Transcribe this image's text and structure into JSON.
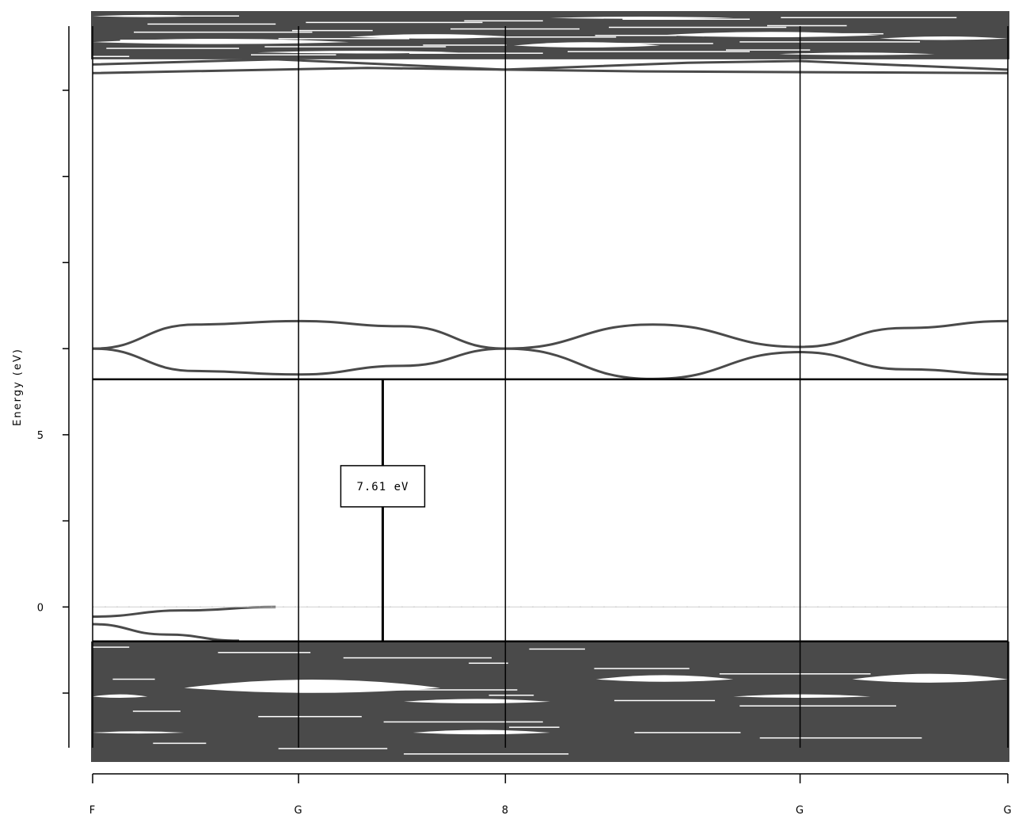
{
  "chart_data": {
    "type": "line",
    "title": "",
    "xlabel": "",
    "ylabel": "Energy (eV)",
    "y_ticks": [
      0,
      5
    ],
    "ylim": [
      -4.5,
      17.3
    ],
    "k_points": [
      {
        "label": "F",
        "x": 0.0
      },
      {
        "label": "G",
        "x": 0.225
      },
      {
        "label": "8",
        "x": 0.451
      },
      {
        "label": "G",
        "x": 0.773
      },
      {
        "label": "G",
        "x": 1.0
      }
    ],
    "band_gap": {
      "label": "7.61 eV",
      "value": 7.61,
      "vbm": -1.0,
      "cbm": 6.61,
      "k": 0.317
    },
    "fermi_level": 0,
    "valence_band_region": {
      "top": -1.0,
      "bottom": -4.5
    },
    "conduction_band_region": {
      "bottom": 6.61,
      "top": 17.3
    },
    "highlighted_bands": [
      {
        "name": "",
        "x": [
          0.0,
          0.113,
          0.225,
          0.338,
          0.451,
          0.612,
          0.773,
          0.887,
          1.0
        ],
        "y": [
          7.5,
          6.85,
          6.75,
          7.0,
          7.5,
          6.62,
          7.4,
          6.9,
          6.75
        ]
      },
      {
        "name": "",
        "x": [
          0.0,
          0.113,
          0.225,
          0.338,
          0.451,
          0.612,
          0.773,
          0.887,
          1.0
        ],
        "y": [
          7.5,
          8.2,
          8.3,
          8.15,
          7.5,
          8.2,
          7.55,
          8.1,
          8.3
        ]
      },
      {
        "name": "",
        "x": [
          0.0,
          0.1,
          0.2
        ],
        "y": [
          -0.28,
          -0.1,
          0.0
        ]
      },
      {
        "name": "",
        "x": [
          0.0,
          0.08,
          0.16
        ],
        "y": [
          -0.5,
          -0.8,
          -0.98
        ]
      }
    ]
  }
}
